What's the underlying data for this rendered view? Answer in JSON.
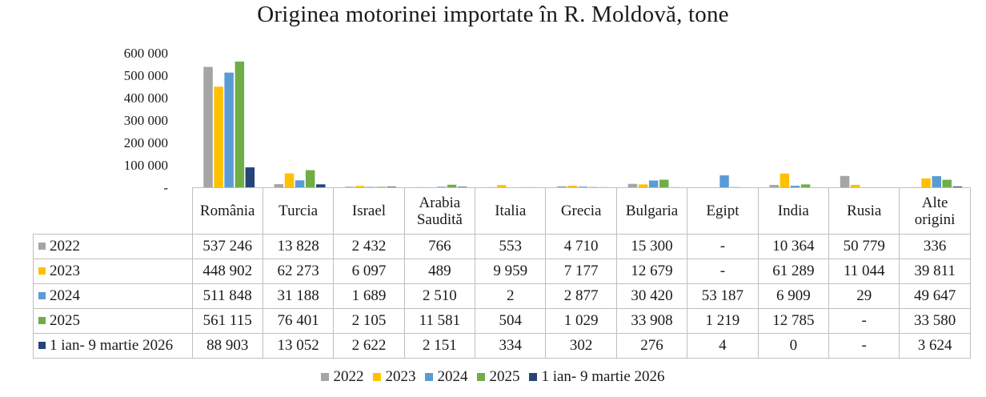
{
  "title": "Originea motorinei importate în R. Moldovă, tone",
  "chart_data": {
    "type": "bar",
    "title": "Originea motorinei importate în R. Moldovă, tone",
    "categories": [
      "România",
      "Turcia",
      "Israel",
      "Arabia Saudită",
      "Italia",
      "Grecia",
      "Bulgaria",
      "Egipt",
      "India",
      "Rusia",
      "Alte origini"
    ],
    "ylim": [
      0,
      600000
    ],
    "yticks": [
      "-",
      "100 000",
      "200 000",
      "300 000",
      "400 000",
      "500 000",
      "600 000"
    ],
    "grid": false,
    "legend_position": "bottom",
    "series": [
      {
        "name": "2022",
        "color": "#a5a5a5",
        "values": [
          537246,
          13828,
          2432,
          766,
          553,
          4710,
          15300,
          null,
          10364,
          50779,
          336
        ],
        "labels": [
          "537 246",
          "13 828",
          "2 432",
          "766",
          "553",
          "4 710",
          "15 300",
          "-",
          "10 364",
          "50 779",
          "336"
        ]
      },
      {
        "name": "2023",
        "color": "#ffc000",
        "values": [
          448902,
          62273,
          6097,
          489,
          9959,
          7177,
          12679,
          null,
          61289,
          11044,
          39811
        ],
        "labels": [
          "448 902",
          "62 273",
          "6 097",
          "489",
          "9 959",
          "7 177",
          "12 679",
          "-",
          "61 289",
          "11 044",
          "39 811"
        ]
      },
      {
        "name": "2024",
        "color": "#5b9bd5",
        "values": [
          511848,
          31188,
          1689,
          2510,
          2,
          2877,
          30420,
          53187,
          6909,
          29,
          49647
        ],
        "labels": [
          "511 848",
          "31 188",
          "1 689",
          "2 510",
          "2",
          "2 877",
          "30 420",
          "53 187",
          "6 909",
          "29",
          "49 647"
        ]
      },
      {
        "name": "2025",
        "color": "#70ad47",
        "values": [
          561115,
          76401,
          2105,
          11581,
          504,
          1029,
          33908,
          1219,
          12785,
          null,
          33580
        ],
        "labels": [
          "561 115",
          "76 401",
          "2 105",
          "11 581",
          "504",
          "1 029",
          "33 908",
          "1 219",
          "12 785",
          "-",
          "33 580"
        ]
      },
      {
        "name": "1 ian- 9 martie 2026",
        "color": "#264478",
        "values": [
          88903,
          13052,
          2622,
          2151,
          334,
          302,
          276,
          4,
          0,
          null,
          3624
        ],
        "labels": [
          "88 903",
          "13 052",
          "2 622",
          "2 151",
          "334",
          "302",
          "276",
          "4",
          "0",
          "-",
          "3 624"
        ]
      }
    ]
  }
}
